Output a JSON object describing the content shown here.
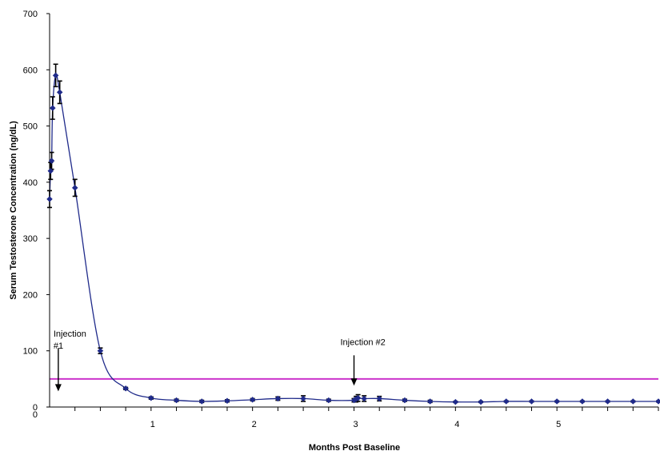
{
  "chart_data": {
    "type": "line",
    "xlabel": "Months Post Baseline",
    "ylabel": "Serum Testosterone Concentration (ng/dL)",
    "xlim": [
      0,
      6
    ],
    "ylim": [
      0,
      700
    ],
    "x_ticks": [
      1,
      2,
      3,
      4,
      5
    ],
    "x_tick_labels": [
      "1",
      "2",
      "3",
      "4",
      "5"
    ],
    "y_ticks": [
      0,
      100,
      200,
      300,
      400,
      500,
      600,
      700
    ],
    "y_tick_labels": [
      "0",
      "100",
      "200",
      "300",
      "400",
      "500",
      "600",
      "700"
    ],
    "grid": false,
    "reference_line": {
      "y": 50,
      "color": "#cc33cc"
    },
    "series": [
      {
        "color": "#1f2a8a",
        "points": [
          {
            "x": 0.0,
            "y": 370,
            "err": 15
          },
          {
            "x": 0.01,
            "y": 420,
            "err": 15
          },
          {
            "x": 0.02,
            "y": 438,
            "err": 15
          },
          {
            "x": 0.03,
            "y": 532,
            "err": 20
          },
          {
            "x": 0.06,
            "y": 590,
            "err": 20
          },
          {
            "x": 0.1,
            "y": 560,
            "err": 20
          },
          {
            "x": 0.25,
            "y": 390,
            "err": 15
          },
          {
            "x": 0.5,
            "y": 100,
            "err": 5
          },
          {
            "x": 0.75,
            "y": 33,
            "err": 2
          },
          {
            "x": 1.0,
            "y": 16,
            "err": 2
          },
          {
            "x": 1.25,
            "y": 12,
            "err": 2
          },
          {
            "x": 1.5,
            "y": 10,
            "err": 2
          },
          {
            "x": 1.75,
            "y": 11,
            "err": 2
          },
          {
            "x": 2.0,
            "y": 13,
            "err": 2
          },
          {
            "x": 2.25,
            "y": 15,
            "err": 3
          },
          {
            "x": 2.5,
            "y": 15,
            "err": 5
          },
          {
            "x": 2.75,
            "y": 12,
            "err": 2
          },
          {
            "x": 3.0,
            "y": 12,
            "err": 3
          },
          {
            "x": 3.02,
            "y": 14,
            "err": 5
          },
          {
            "x": 3.04,
            "y": 16,
            "err": 6
          },
          {
            "x": 3.1,
            "y": 15,
            "err": 5
          },
          {
            "x": 3.25,
            "y": 15,
            "err": 4
          },
          {
            "x": 3.5,
            "y": 12,
            "err": 2
          },
          {
            "x": 3.75,
            "y": 10,
            "err": 2
          },
          {
            "x": 4.0,
            "y": 9,
            "err": 1
          },
          {
            "x": 4.25,
            "y": 9,
            "err": 1
          },
          {
            "x": 4.5,
            "y": 10,
            "err": 1
          },
          {
            "x": 4.75,
            "y": 10,
            "err": 1
          },
          {
            "x": 5.0,
            "y": 10,
            "err": 1
          },
          {
            "x": 5.25,
            "y": 10,
            "err": 1
          },
          {
            "x": 5.5,
            "y": 10,
            "err": 1
          },
          {
            "x": 5.75,
            "y": 10,
            "err": 1
          },
          {
            "x": 6.0,
            "y": 10,
            "err": 1
          }
        ]
      }
    ],
    "annotations": [
      {
        "lines": [
          "Injection",
          "#1"
        ],
        "x": 0.07,
        "y": 125,
        "arrow_from": 105,
        "arrow_to": 28
      },
      {
        "lines": [
          "Injection #2"
        ],
        "x": 3.0,
        "y": 110,
        "arrow_from": 92,
        "arrow_to": 38
      }
    ]
  }
}
